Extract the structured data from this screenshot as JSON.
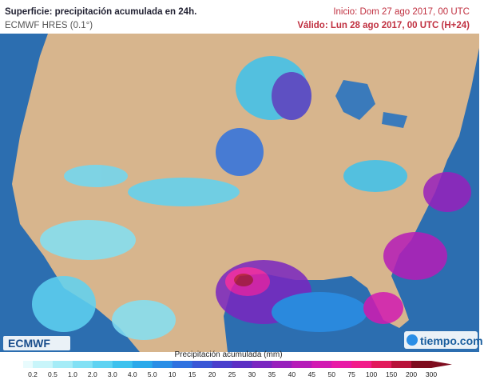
{
  "header": {
    "title": "Superficie: precipitación acumulada en 24h.",
    "model": "ECMWF HRES (0.1°)",
    "init": "Inicio: Dom 27 ago 2017, 00 UTC",
    "valid": "Válido: Lun 28 ago 2017, 00 UTC (H+24)"
  },
  "logos": {
    "left": "ECMWF",
    "right": "tiempo.com"
  },
  "legend": {
    "title": "Precipitación acumulada (mm)",
    "labels": [
      "0.2",
      "0.5",
      "1.0",
      "2.0",
      "3.0",
      "4.0",
      "5.0",
      "10",
      "15",
      "20",
      "25",
      "30",
      "35",
      "40",
      "45",
      "50",
      "75",
      "100",
      "150",
      "200",
      "300"
    ],
    "colors": [
      "#c8f5fa",
      "#a5ecf7",
      "#82e1f5",
      "#5fd3f2",
      "#3dc2ee",
      "#2aa9ea",
      "#2a8ee6",
      "#2f72e0",
      "#3a57d6",
      "#4a3fcc",
      "#5c2fc4",
      "#7a26c0",
      "#9820bc",
      "#b61cb8",
      "#d21ab2",
      "#e81aa6",
      "#f21c8a",
      "#e21a5c",
      "#b8123a",
      "#7e0c1e"
    ]
  }
}
